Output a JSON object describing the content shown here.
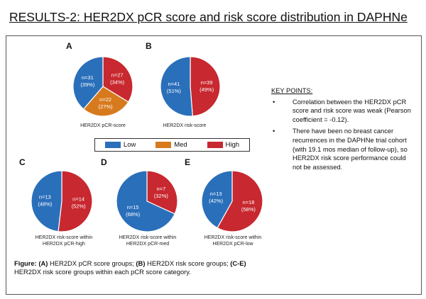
{
  "title": "RESULTS-2: HER2DX pCR score and risk score distribution in DAPHNe",
  "colors": {
    "low": "#2a6fba",
    "med": "#d77a1e",
    "high": "#c8282f"
  },
  "chart_data": [
    {
      "type": "pie",
      "panel": "A",
      "caption": "HER2DX pCR-score",
      "slices": [
        {
          "category": "High",
          "label": "n=27",
          "pct": "(34%)",
          "value": 27
        },
        {
          "category": "Med",
          "label": "n=22",
          "pct": "(27%)",
          "value": 22
        },
        {
          "category": "Low",
          "label": "n=31",
          "pct": "(39%)",
          "value": 31
        }
      ]
    },
    {
      "type": "pie",
      "panel": "B",
      "caption": "HER2DX risk-score",
      "slices": [
        {
          "category": "High",
          "label": "n=39",
          "pct": "(49%)",
          "value": 39
        },
        {
          "category": "Low",
          "label": "n=41",
          "pct": "(51%)",
          "value": 41
        }
      ]
    },
    {
      "type": "pie",
      "panel": "C",
      "caption": "HER2DX risk-score within HER2DX pCR-high",
      "slices": [
        {
          "category": "High",
          "label": "n=14",
          "pct": "(52%)",
          "value": 14
        },
        {
          "category": "Low",
          "label": "n=13",
          "pct": "(48%)",
          "value": 13
        }
      ]
    },
    {
      "type": "pie",
      "panel": "D",
      "caption": "HER2DX risk-score within HER2DX pCR-med",
      "slices": [
        {
          "category": "High",
          "label": "n=7",
          "pct": "(32%)",
          "value": 7
        },
        {
          "category": "Low",
          "label": "n=15",
          "pct": "(68%)",
          "value": 15
        }
      ]
    },
    {
      "type": "pie",
      "panel": "E",
      "caption": "HER2DX risk-score within HER2DX pCR-low",
      "slices": [
        {
          "category": "High",
          "label": "n=18",
          "pct": "(58%)",
          "value": 18
        },
        {
          "category": "Low",
          "label": "n=13",
          "pct": "(42%)",
          "value": 13
        }
      ]
    }
  ],
  "legend": [
    {
      "label": "Low",
      "category": "Low"
    },
    {
      "label": "Med",
      "category": "Med"
    },
    {
      "label": "High",
      "category": "High"
    }
  ],
  "key_points": {
    "heading": "KEY POINTS:",
    "items": [
      "Correlation between the HER2DX pCR score and risk score was weak (Pearson coefficient = -0.12).",
      "There have been no breast cancer recurrences in the DAPHNe trial cohort (with 19.1 mos median of follow-up), so HER2DX risk score performance could not be assessed."
    ]
  },
  "figure_caption": {
    "lead": "Figure:",
    "a_tag": "(A)",
    "a_text": " HER2DX pCR score groups; ",
    "b_tag": "(B)",
    "b_text": " HER2DX risk score groups; ",
    "ce_tag": "(C-E)",
    "ce_text": " HER2DX risk score groups within each pCR score category."
  }
}
